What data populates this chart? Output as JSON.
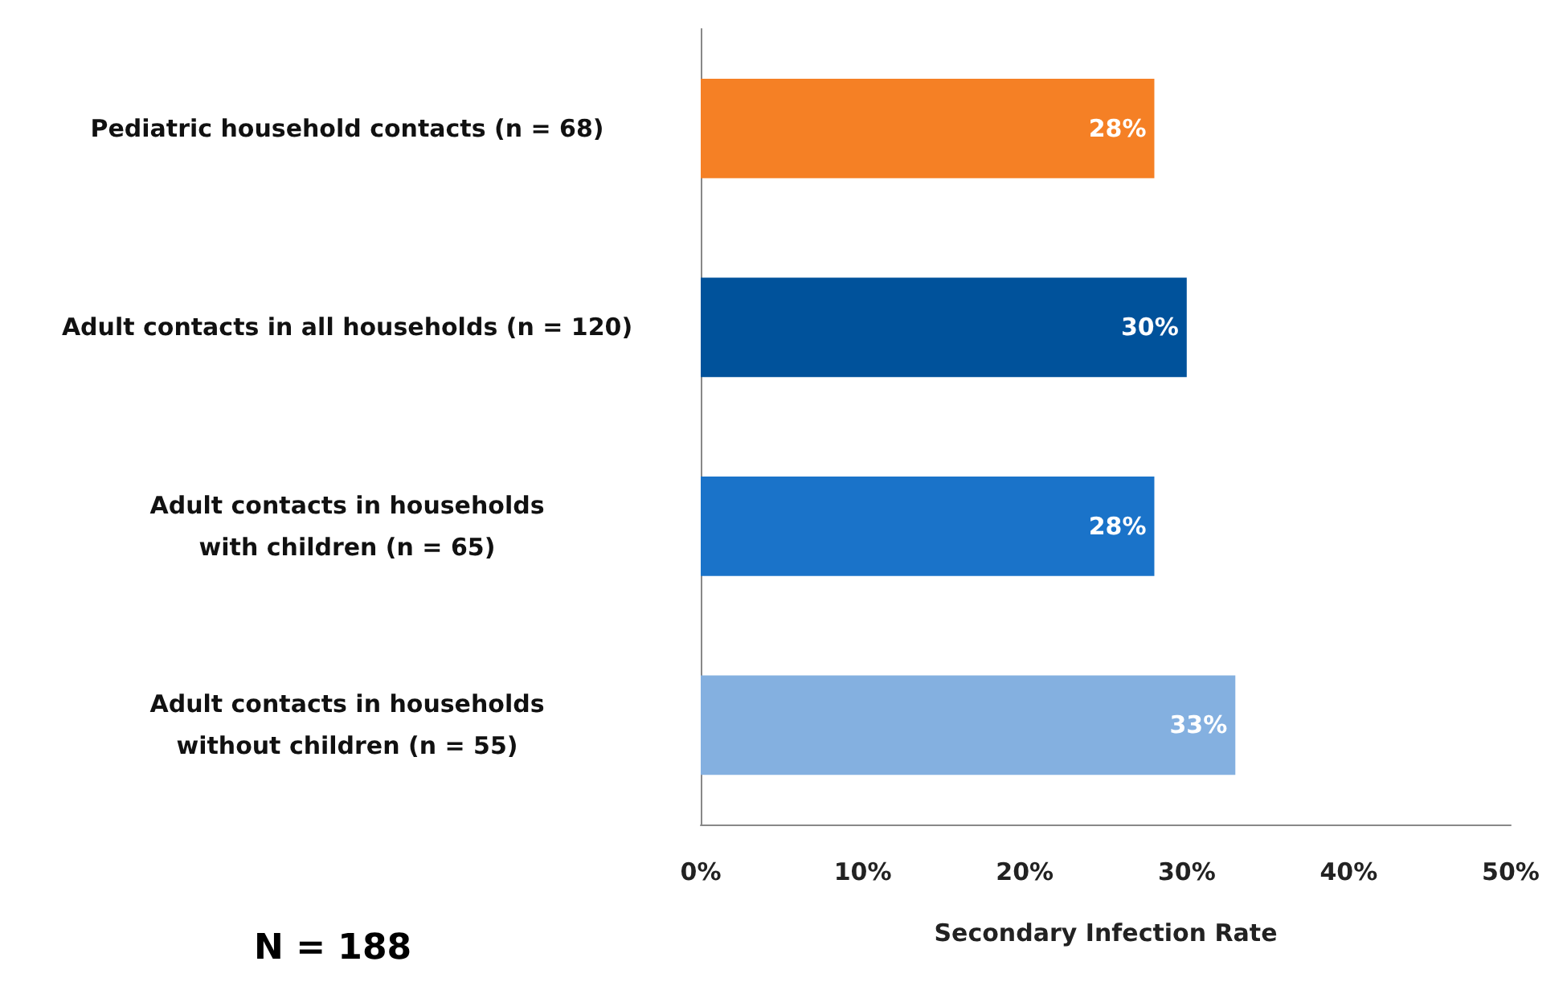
{
  "chart_data": {
    "type": "bar",
    "orientation": "horizontal",
    "xlabel": "Secondary Infection Rate",
    "categories": [
      "Pediatric household contacts (n = 68)",
      "Adult contacts in all households (n = 120)",
      "Adult contacts in households\nwith children (n = 65)",
      "Adult contacts in households\nwithout children (n = 55)"
    ],
    "values": [
      28,
      30,
      28,
      33
    ],
    "colors": [
      "#f58025",
      "#00529b",
      "#1a73c9",
      "#84b0e0"
    ],
    "value_labels": [
      "28%",
      "30%",
      "28%",
      "33%"
    ],
    "xlim": [
      0,
      50
    ],
    "xticks": [
      {
        "value": 0,
        "label": "0%"
      },
      {
        "value": 10,
        "label": "10%"
      },
      {
        "value": 20,
        "label": "20%"
      },
      {
        "value": 30,
        "label": "30%"
      },
      {
        "value": 40,
        "label": "40%"
      },
      {
        "value": 50,
        "label": "50%"
      }
    ],
    "grid": false,
    "annotations": [
      "N = 188"
    ]
  }
}
